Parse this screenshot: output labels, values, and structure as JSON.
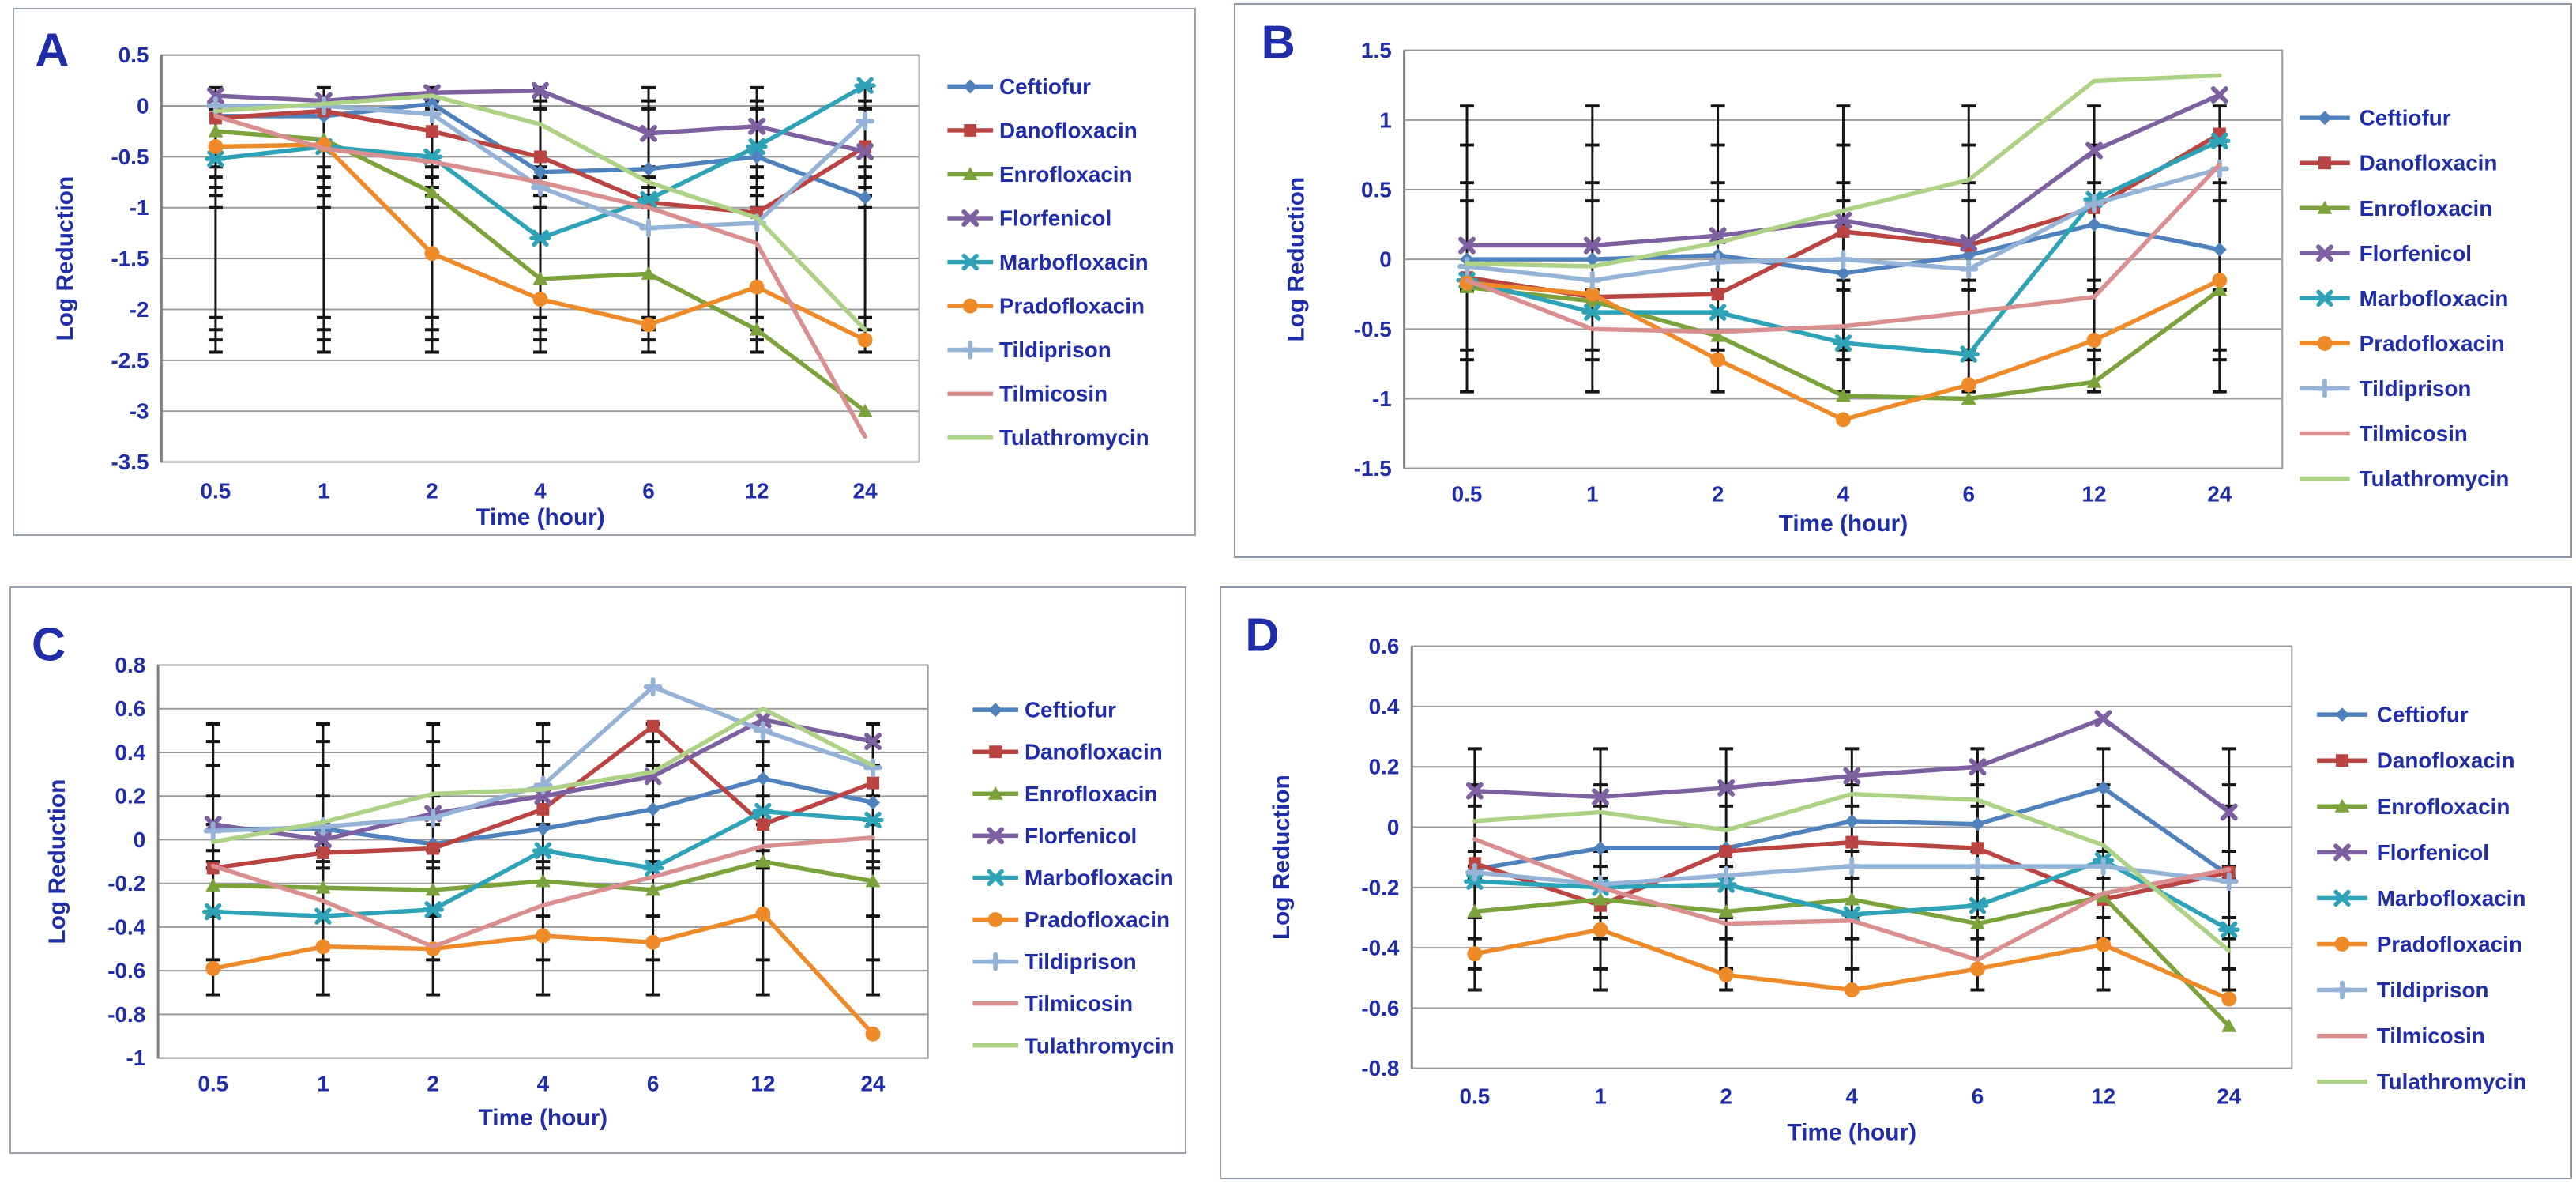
{
  "figure": {
    "text_color": "#1F2DA8",
    "grid_color": "#9a9a9a",
    "axis_color": "#7f7f7f",
    "error_bar_color": "#151515",
    "panel_border_color": "#9aa1ad",
    "background": "#ffffff",
    "panels": [
      "A",
      "B",
      "C",
      "D"
    ]
  },
  "legend": {
    "entries": [
      {
        "label": "Ceftiofur",
        "color": "#4F81BD",
        "marker": "diamond"
      },
      {
        "label": "Danofloxacin",
        "color": "#B94441",
        "marker": "square"
      },
      {
        "label": "Enrofloxacin",
        "color": "#7CA23C",
        "marker": "triangle"
      },
      {
        "label": "Florfenicol",
        "color": "#7D60A0",
        "marker": "x"
      },
      {
        "label": "Marbofloxacin",
        "color": "#2EA3B7",
        "marker": "asterisk"
      },
      {
        "label": "Pradofloxacin",
        "color": "#EE8A28",
        "marker": "circle"
      },
      {
        "label": "Tildiprison",
        "color": "#95B3D7",
        "marker": "plus"
      },
      {
        "label": "Tilmicosin",
        "color": "#D98F90",
        "marker": "none"
      },
      {
        "label": "Tulathromycin",
        "color": "#AED285",
        "marker": "none"
      }
    ]
  },
  "chart_data": [
    {
      "panel": "A",
      "type": "line",
      "xlabel": "Time (hour)",
      "ylabel": "Log Reduction",
      "categories": [
        "0.5",
        "1",
        "2",
        "4",
        "6",
        "12",
        "24"
      ],
      "ylim": [
        -3.5,
        0.5
      ],
      "yticks": [
        0.5,
        0,
        -0.5,
        -1,
        -1.5,
        -2,
        -2.5,
        -3,
        -3.5
      ],
      "grid": true,
      "legend_position": "right",
      "error_bar": {
        "ymax": 0.18,
        "ymin": -2.42,
        "caps": [
          0.18,
          0.05,
          -0.03,
          -0.6,
          -0.7,
          -0.8,
          -0.88,
          -1.0,
          -2.08,
          -2.2,
          -2.3,
          -2.42
        ]
      },
      "series": [
        {
          "name": "Ceftiofur",
          "values": [
            -0.1,
            -0.1,
            0.02,
            -0.65,
            -0.62,
            -0.5,
            -0.9
          ]
        },
        {
          "name": "Danofloxacin",
          "values": [
            -0.12,
            -0.05,
            -0.25,
            -0.5,
            -0.95,
            -1.05,
            -0.4
          ]
        },
        {
          "name": "Enrofloxacin",
          "values": [
            -0.25,
            -0.33,
            -0.85,
            -1.7,
            -1.65,
            -2.2,
            -3.0
          ]
        },
        {
          "name": "Florfenicol",
          "values": [
            0.1,
            0.05,
            0.13,
            0.15,
            -0.27,
            -0.2,
            -0.45
          ]
        },
        {
          "name": "Marbofloxacin",
          "values": [
            -0.52,
            -0.4,
            -0.5,
            -1.3,
            -0.92,
            -0.4,
            0.2
          ]
        },
        {
          "name": "Pradofloxacin",
          "values": [
            -0.4,
            -0.38,
            -1.45,
            -1.9,
            -2.15,
            -1.78,
            -2.3
          ]
        },
        {
          "name": "Tildiprison",
          "values": [
            0.0,
            0.0,
            -0.08,
            -0.8,
            -1.2,
            -1.15,
            -0.15
          ]
        },
        {
          "name": "Tilmicosin",
          "values": [
            -0.1,
            -0.42,
            -0.55,
            -0.75,
            -1.0,
            -1.35,
            -3.25
          ]
        },
        {
          "name": "Tulathromycin",
          "values": [
            -0.05,
            0.02,
            0.1,
            -0.18,
            -0.75,
            -1.1,
            -2.2
          ]
        }
      ]
    },
    {
      "panel": "B",
      "type": "line",
      "xlabel": "Time (hour)",
      "ylabel": "Log Reduction",
      "categories": [
        "0.5",
        "1",
        "2",
        "4",
        "6",
        "12",
        "24"
      ],
      "ylim": [
        -1.5,
        1.5
      ],
      "yticks": [
        1.5,
        1,
        0.5,
        0,
        -0.5,
        -1,
        -1.5
      ],
      "grid": true,
      "legend_position": "right",
      "error_bar": {
        "ymax": 1.1,
        "ymin": -0.95,
        "caps": [
          1.1,
          0.82,
          0.55,
          0.42,
          -0.15,
          -0.22,
          -0.65,
          -0.72,
          -0.95
        ]
      },
      "series": [
        {
          "name": "Ceftiofur",
          "values": [
            0.0,
            0.0,
            0.03,
            -0.1,
            0.03,
            0.25,
            0.07
          ]
        },
        {
          "name": "Danofloxacin",
          "values": [
            -0.13,
            -0.27,
            -0.25,
            0.2,
            0.1,
            0.37,
            0.9
          ]
        },
        {
          "name": "Enrofloxacin",
          "values": [
            -0.2,
            -0.3,
            -0.55,
            -0.98,
            -1.0,
            -0.88,
            -0.22
          ]
        },
        {
          "name": "Florfenicol",
          "values": [
            0.1,
            0.1,
            0.17,
            0.28,
            0.12,
            0.78,
            1.18
          ]
        },
        {
          "name": "Marbofloxacin",
          "values": [
            -0.15,
            -0.38,
            -0.38,
            -0.6,
            -0.68,
            0.43,
            0.85
          ]
        },
        {
          "name": "Pradofloxacin",
          "values": [
            -0.17,
            -0.25,
            -0.72,
            -1.15,
            -0.9,
            -0.58,
            -0.15
          ]
        },
        {
          "name": "Tildiprison",
          "values": [
            -0.05,
            -0.15,
            -0.02,
            0.0,
            -0.07,
            0.4,
            0.65
          ]
        },
        {
          "name": "Tilmicosin",
          "values": [
            -0.15,
            -0.5,
            -0.52,
            -0.48,
            -0.38,
            -0.27,
            0.68
          ]
        },
        {
          "name": "Tulathromycin",
          "values": [
            -0.03,
            -0.05,
            0.12,
            0.35,
            0.57,
            1.28,
            1.32
          ]
        }
      ]
    },
    {
      "panel": "C",
      "type": "line",
      "xlabel": "Time (hour)",
      "ylabel": "Log Reduction",
      "categories": [
        "0.5",
        "1",
        "2",
        "4",
        "6",
        "12",
        "24"
      ],
      "ylim": [
        -1,
        0.8
      ],
      "yticks": [
        0.8,
        0.6,
        0.4,
        0.2,
        0,
        -0.2,
        -0.4,
        -0.6,
        -0.8,
        -1
      ],
      "grid": true,
      "legend_position": "right",
      "error_bar": {
        "ymax": 0.53,
        "ymin": -0.71,
        "caps": [
          0.53,
          0.45,
          0.34,
          0.2,
          0.07,
          -0.05,
          -0.1,
          -0.13,
          -0.35,
          -0.55,
          -0.71
        ]
      },
      "series": [
        {
          "name": "Ceftiofur",
          "values": [
            0.05,
            0.05,
            -0.02,
            0.05,
            0.14,
            0.28,
            0.17
          ]
        },
        {
          "name": "Danofloxacin",
          "values": [
            -0.13,
            -0.06,
            -0.04,
            0.14,
            0.52,
            0.07,
            0.26
          ]
        },
        {
          "name": "Enrofloxacin",
          "values": [
            -0.21,
            -0.22,
            -0.23,
            -0.19,
            -0.23,
            -0.1,
            -0.19
          ]
        },
        {
          "name": "Florfenicol",
          "values": [
            0.07,
            0.0,
            0.12,
            0.2,
            0.29,
            0.55,
            0.45
          ]
        },
        {
          "name": "Marbofloxacin",
          "values": [
            -0.33,
            -0.35,
            -0.32,
            -0.05,
            -0.13,
            0.13,
            0.09
          ]
        },
        {
          "name": "Pradofloxacin",
          "values": [
            -0.59,
            -0.49,
            -0.5,
            -0.44,
            -0.47,
            -0.34,
            -0.89
          ]
        },
        {
          "name": "Tildiprison",
          "values": [
            0.04,
            0.06,
            0.1,
            0.25,
            0.7,
            0.5,
            0.33
          ]
        },
        {
          "name": "Tilmicosin",
          "values": [
            -0.12,
            -0.28,
            -0.49,
            -0.3,
            -0.17,
            -0.03,
            0.01
          ]
        },
        {
          "name": "Tulathromycin",
          "values": [
            -0.01,
            0.08,
            0.21,
            0.23,
            0.31,
            0.6,
            0.34
          ]
        }
      ]
    },
    {
      "panel": "D",
      "type": "line",
      "xlabel": "Time (hour)",
      "ylabel": "Log Reduction",
      "categories": [
        "0.5",
        "1",
        "2",
        "4",
        "6",
        "12",
        "24"
      ],
      "ylim": [
        -0.8,
        0.6
      ],
      "yticks": [
        0.6,
        0.4,
        0.2,
        0,
        -0.2,
        -0.4,
        -0.6,
        -0.8
      ],
      "grid": true,
      "legend_position": "right",
      "error_bar": {
        "ymax": 0.26,
        "ymin": -0.54,
        "caps": [
          0.26,
          0.14,
          0.07,
          -0.08,
          -0.13,
          -0.17,
          -0.3,
          -0.37,
          -0.47,
          -0.54
        ]
      },
      "series": [
        {
          "name": "Ceftiofur",
          "values": [
            -0.14,
            -0.07,
            -0.07,
            0.02,
            0.01,
            0.13,
            -0.16
          ]
        },
        {
          "name": "Danofloxacin",
          "values": [
            -0.12,
            -0.26,
            -0.08,
            -0.05,
            -0.07,
            -0.24,
            -0.15
          ]
        },
        {
          "name": "Enrofloxacin",
          "values": [
            -0.28,
            -0.24,
            -0.28,
            -0.24,
            -0.32,
            -0.23,
            -0.66
          ]
        },
        {
          "name": "Florfenicol",
          "values": [
            0.12,
            0.1,
            0.13,
            0.17,
            0.2,
            0.36,
            0.05
          ]
        },
        {
          "name": "Marbofloxacin",
          "values": [
            -0.18,
            -0.2,
            -0.19,
            -0.29,
            -0.26,
            -0.11,
            -0.34
          ]
        },
        {
          "name": "Pradofloxacin",
          "values": [
            -0.42,
            -0.34,
            -0.49,
            -0.54,
            -0.47,
            -0.39,
            -0.57
          ]
        },
        {
          "name": "Tildiprison",
          "values": [
            -0.15,
            -0.19,
            -0.16,
            -0.13,
            -0.13,
            -0.13,
            -0.18
          ]
        },
        {
          "name": "Tilmicosin",
          "values": [
            -0.04,
            -0.2,
            -0.32,
            -0.31,
            -0.44,
            -0.22,
            -0.14
          ]
        },
        {
          "name": "Tulathromycin",
          "values": [
            0.02,
            0.05,
            -0.01,
            0.11,
            0.09,
            -0.06,
            -0.41
          ]
        }
      ]
    }
  ]
}
